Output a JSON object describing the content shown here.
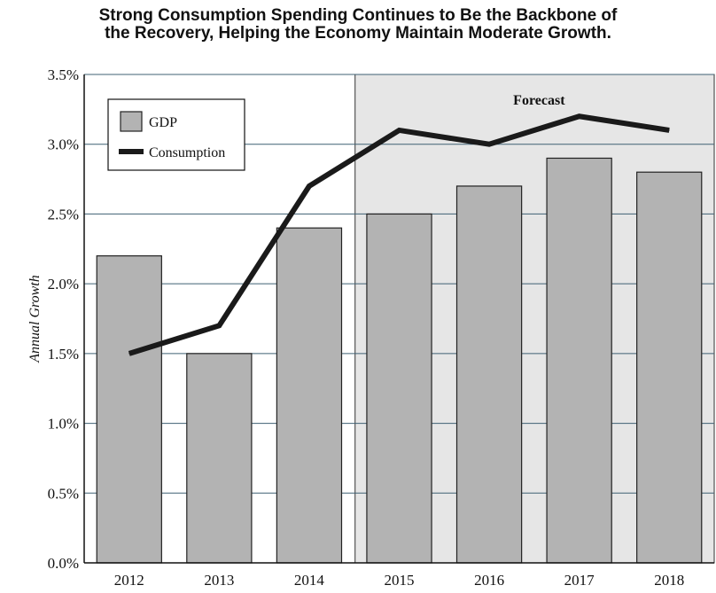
{
  "chart_data": {
    "type": "bar",
    "title_lines": [
      "Strong Consumption Spending Continues to Be the Backbone of",
      "the Recovery, Helping the Economy Maintain Moderate Growth."
    ],
    "ylabel": "Annual Growth",
    "categories": [
      "2012",
      "2013",
      "2014",
      "2015",
      "2016",
      "2017",
      "2018"
    ],
    "series": [
      {
        "name": "GDP",
        "kind": "bar",
        "values": [
          2.2,
          1.5,
          2.4,
          2.5,
          2.7,
          2.9,
          2.8
        ],
        "color": "#b3b3b3"
      },
      {
        "name": "Consumption",
        "kind": "line",
        "values": [
          1.5,
          1.7,
          2.7,
          3.1,
          3.0,
          3.2,
          3.1
        ],
        "color": "#1a1a1a"
      }
    ],
    "ylim": [
      0,
      3.5
    ],
    "yticks": [
      "0.0%",
      "0.5%",
      "1.0%",
      "1.5%",
      "2.0%",
      "2.5%",
      "3.0%",
      "3.5%"
    ],
    "forecast": {
      "label": "Forecast",
      "from_category": "2015",
      "color": "#e6e6e6"
    },
    "grid": true,
    "legend_position": "top-left"
  }
}
